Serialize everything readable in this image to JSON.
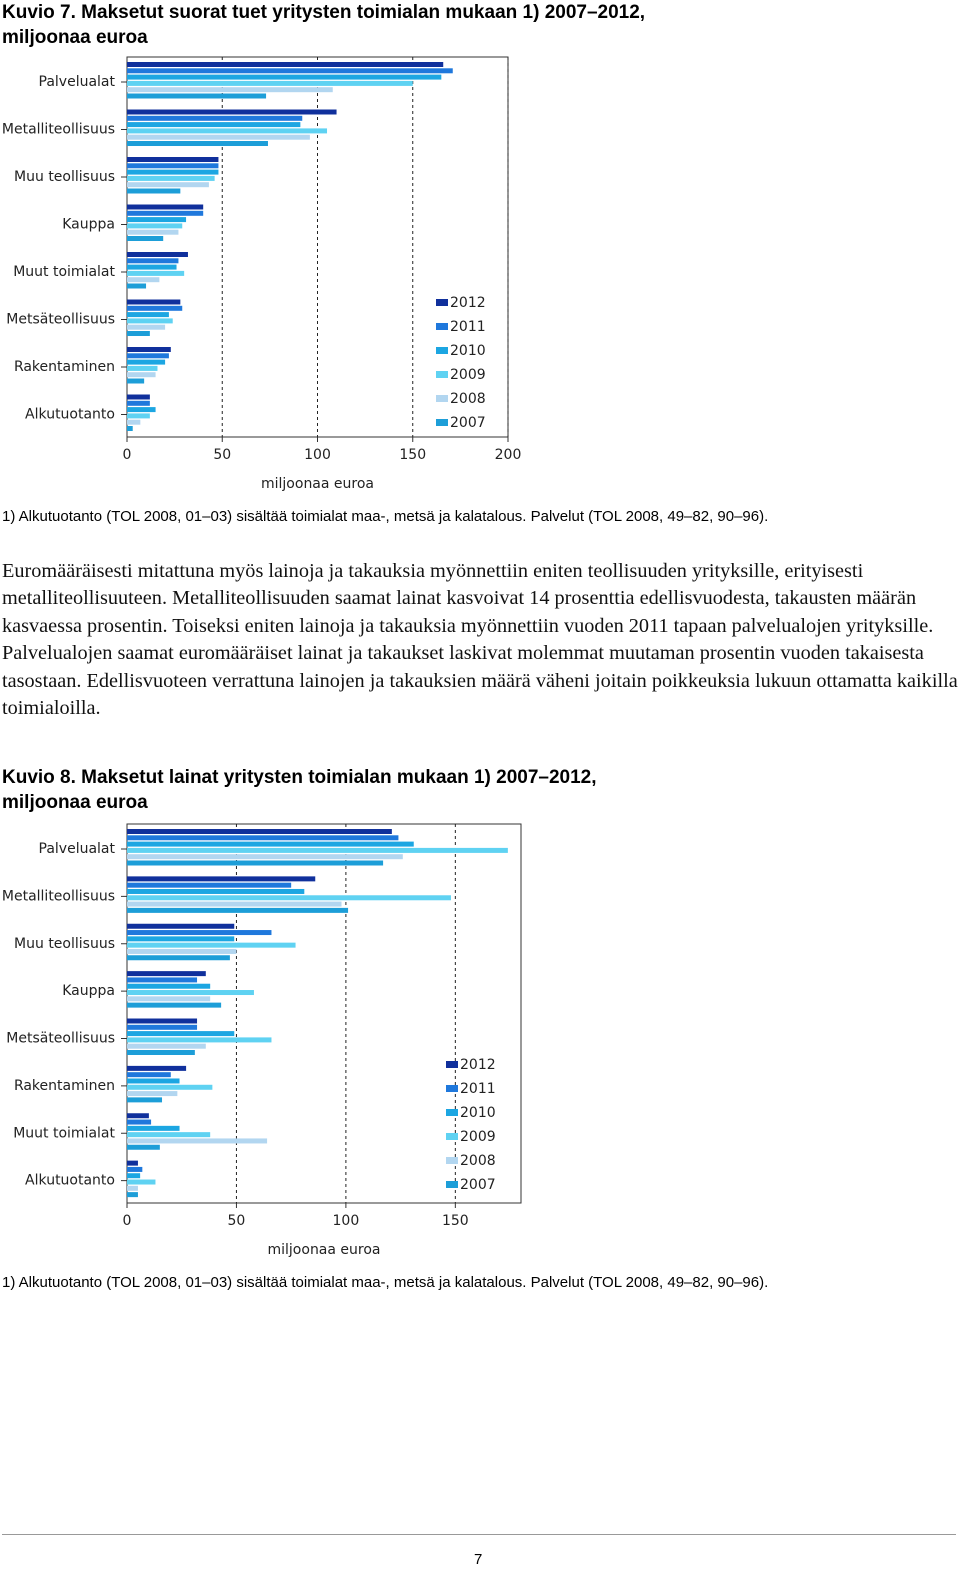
{
  "chart_data": [
    {
      "type": "hbar",
      "title": "Kuvio 7. Maksetut suorat tuet yritysten toimialan mukaan 1) 2007–2012, miljoonaa euroa",
      "x_label": "miljoonaa euroa",
      "categories": [
        "Palvelualat",
        "Metalliteollisuus",
        "Muu teollisuus",
        "Kauppa",
        "Muut toimialat",
        "Metsäteollisuus",
        "Rakentaminen",
        "Alkutuotanto"
      ],
      "series": [
        {
          "name": "2012",
          "color": "#10309c",
          "values": [
            166,
            110,
            48,
            40,
            32,
            28,
            23,
            12
          ]
        },
        {
          "name": "2011",
          "color": "#1f78dc",
          "values": [
            171,
            92,
            48,
            40,
            27,
            29,
            22,
            12
          ]
        },
        {
          "name": "2010",
          "color": "#1ca6e2",
          "values": [
            165,
            91,
            48,
            31,
            26,
            22,
            20,
            15
          ]
        },
        {
          "name": "2009",
          "color": "#5fd2f2",
          "values": [
            150,
            105,
            46,
            29,
            30,
            24,
            16,
            12
          ]
        },
        {
          "name": "2008",
          "color": "#b2d6f0",
          "values": [
            108,
            96,
            43,
            27,
            17,
            20,
            15,
            7
          ]
        },
        {
          "name": "2007",
          "color": "#1d9ed8",
          "values": [
            73,
            74,
            28,
            19,
            10,
            12,
            9,
            3
          ]
        }
      ],
      "xlim": [
        0,
        200
      ],
      "xticks": [
        0,
        50,
        100,
        150,
        200
      ],
      "grid": true,
      "footnote": "1) Alkutuotanto (TOL 2008, 01–03) sisältää toimialat maa-, metsä ja kalatalous. Palvelut (TOL 2008, 49–82, 90–96)."
    },
    {
      "type": "hbar",
      "title": "Kuvio 8. Maksetut lainat yritysten toimialan mukaan 1) 2007–2012, miljoonaa euroa",
      "x_label": "miljoonaa euroa",
      "categories": [
        "Palvelualat",
        "Metalliteollisuus",
        "Muu teollisuus",
        "Kauppa",
        "Metsäteollisuus",
        "Rakentaminen",
        "Muut toimialat",
        "Alkutuotanto"
      ],
      "series": [
        {
          "name": "2012",
          "color": "#10309c",
          "values": [
            121,
            86,
            49,
            36,
            32,
            27,
            10,
            5
          ]
        },
        {
          "name": "2011",
          "color": "#1f78dc",
          "values": [
            124,
            75,
            66,
            32,
            32,
            20,
            11,
            7
          ]
        },
        {
          "name": "2010",
          "color": "#1ca6e2",
          "values": [
            131,
            81,
            49,
            38,
            49,
            24,
            24,
            6
          ]
        },
        {
          "name": "2009",
          "color": "#5fd2f2",
          "values": [
            174,
            148,
            77,
            58,
            66,
            39,
            38,
            13
          ]
        },
        {
          "name": "2008",
          "color": "#b2d6f0",
          "values": [
            126,
            98,
            50,
            38,
            36,
            23,
            64,
            5
          ]
        },
        {
          "name": "2007",
          "color": "#1d9ed8",
          "values": [
            117,
            101,
            47,
            43,
            31,
            16,
            15,
            5
          ]
        }
      ],
      "xlim": [
        0,
        180
      ],
      "xticks": [
        0,
        50,
        100,
        150
      ],
      "grid": true,
      "footnote": "1) Alkutuotanto (TOL 2008, 01–03) sisältää toimialat maa-, metsä ja kalatalous. Palvelut (TOL 2008, 49–82, 90–96)."
    }
  ],
  "paragraph": "Euromääräisesti mitattuna myös lainoja ja takauksia myönnettiin eniten teollisuuden yrityksille, erityisesti metalliteollisuuteen. Metalliteollisuuden saamat lainat kasvoivat 14 prosenttia edellisvuodesta, takausten määrän kasvaessa prosentin. Toiseksi eniten lainoja ja takauksia myönnettiin vuoden 2011 tapaan palvelualojen yrityksille. Palvelualojen saamat euromääräiset lainat ja takaukset laskivat molemmat muutaman prosentin vuoden takaisesta tasostaan. Edellisvuoteen verrattuna lainojen ja takauksien määrä väheni joitain poikkeuksia lukuun ottamatta kaikilla toimialoilla.",
  "page_number": "7"
}
